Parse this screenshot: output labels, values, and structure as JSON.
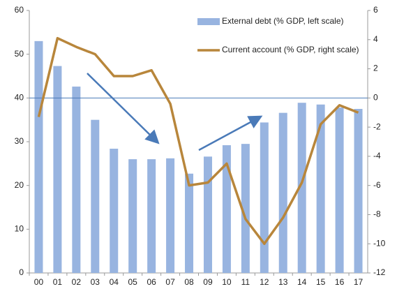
{
  "chart_data": {
    "type": "bar_line",
    "categories": [
      "00",
      "01",
      "02",
      "03",
      "04",
      "05",
      "06",
      "07",
      "08",
      "09",
      "10",
      "11",
      "12",
      "13",
      "14",
      "15",
      "16",
      "17"
    ],
    "series": [
      {
        "name": "External debt (% GDP, left scale)",
        "type": "bar",
        "color": "#98b4e0",
        "axis": "y",
        "values": [
          53,
          47.3,
          42.6,
          35,
          28.4,
          26,
          26,
          26.2,
          22.7,
          26.6,
          29.2,
          29.5,
          34.4,
          36.6,
          38.9,
          38.5,
          37.8,
          37.5
        ]
      },
      {
        "name": "Current account (% GDP, right scale)",
        "type": "line",
        "color": "#b8863b",
        "axis": "y2",
        "values": [
          -1.3,
          4.1,
          3.5,
          3.0,
          1.5,
          1.5,
          1.9,
          -0.4,
          -6.0,
          -5.8,
          -4.5,
          -8.3,
          -10.0,
          -8.2,
          -5.8,
          -1.8,
          -0.5,
          -1.0
        ]
      }
    ],
    "ylim": [
      0,
      60
    ],
    "yticks": [
      0,
      10,
      20,
      30,
      40,
      50,
      60
    ],
    "y2lim": [
      -12,
      6
    ],
    "y2ticks": [
      -12,
      -10,
      -8,
      -6,
      -4,
      -2,
      0,
      2,
      4,
      6
    ],
    "reference_line_y2": 0,
    "legend": "top-right",
    "grid": false
  }
}
